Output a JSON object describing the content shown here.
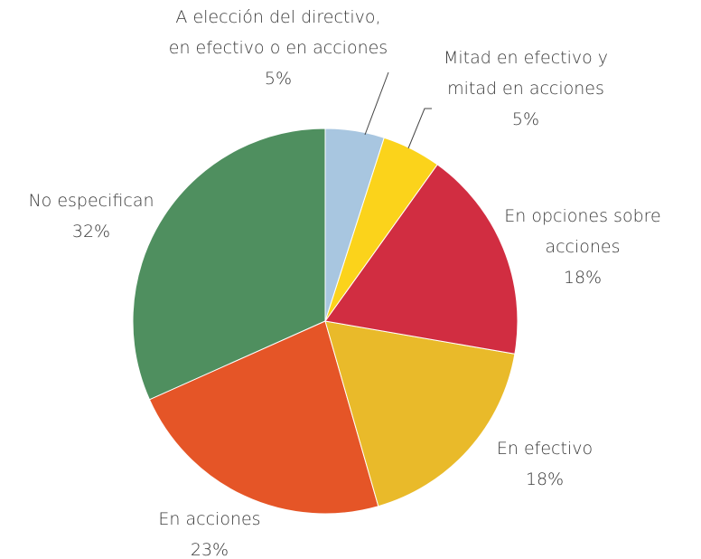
{
  "chart_data": {
    "type": "pie",
    "categories": [
      [
        "A elección del directivo,",
        "en efectivo o en acciones"
      ],
      [
        "Mitad en efectivo y",
        "mitad en acciones"
      ],
      [
        "En opciones sobre",
        "acciones"
      ],
      [
        "En efectivo"
      ],
      [
        "En acciones"
      ],
      [
        "No especifican"
      ]
    ],
    "values": [
      5,
      5,
      18,
      18,
      23,
      32
    ],
    "value_labels": [
      "5%",
      "5%",
      "18%",
      "18%",
      "23%",
      "32%"
    ],
    "colors": [
      "#a8c6e0",
      "#fbd31b",
      "#d12d41",
      "#e9ba2a",
      "#e55527",
      "#4f8f5f"
    ]
  }
}
